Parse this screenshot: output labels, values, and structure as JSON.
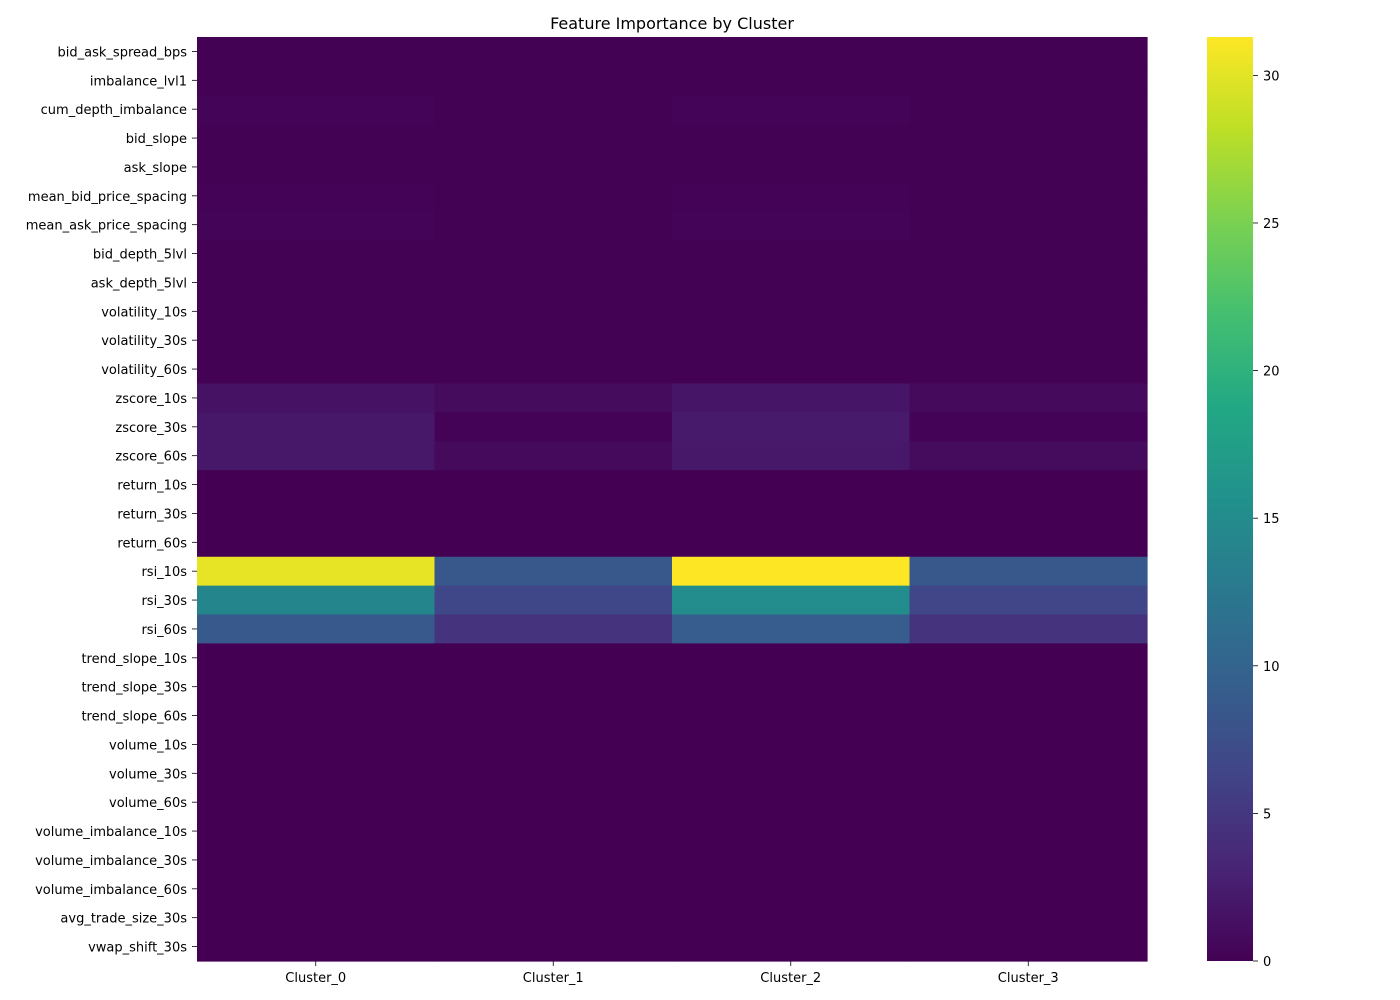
{
  "chart_data": {
    "type": "heatmap",
    "title": "Feature Importance by Cluster",
    "xlabel": "",
    "ylabel": "",
    "colormap": "viridis",
    "grid": false,
    "legend": "colorbar right",
    "color_range": [
      0,
      31.3
    ],
    "colorbar_ticks": [
      0,
      5,
      10,
      15,
      20,
      25,
      30
    ],
    "columns": [
      "Cluster_0",
      "Cluster_1",
      "Cluster_2",
      "Cluster_3"
    ],
    "rows": [
      "bid_ask_spread_bps",
      "imbalance_lvl1",
      "cum_depth_imbalance",
      "bid_slope",
      "ask_slope",
      "mean_bid_price_spacing",
      "mean_ask_price_spacing",
      "bid_depth_5lvl",
      "ask_depth_5lvl",
      "volatility_10s",
      "volatility_30s",
      "volatility_60s",
      "zscore_10s",
      "zscore_30s",
      "zscore_60s",
      "return_10s",
      "return_30s",
      "return_60s",
      "rsi_10s",
      "rsi_30s",
      "rsi_60s",
      "trend_slope_10s",
      "trend_slope_30s",
      "trend_slope_60s",
      "volume_10s",
      "volume_30s",
      "volume_60s",
      "volume_imbalance_10s",
      "volume_imbalance_30s",
      "volume_imbalance_60s",
      "avg_trade_size_30s",
      "vwap_shift_30s"
    ],
    "values": [
      [
        0.1,
        0.05,
        0.1,
        0.05
      ],
      [
        0.1,
        0.05,
        0.1,
        0.05
      ],
      [
        0.3,
        0.1,
        0.3,
        0.1
      ],
      [
        0.1,
        0.05,
        0.1,
        0.05
      ],
      [
        0.1,
        0.05,
        0.1,
        0.05
      ],
      [
        0.2,
        0.1,
        0.2,
        0.1
      ],
      [
        0.3,
        0.1,
        0.3,
        0.1
      ],
      [
        0.1,
        0.05,
        0.1,
        0.05
      ],
      [
        0.1,
        0.05,
        0.1,
        0.05
      ],
      [
        0.05,
        0.05,
        0.05,
        0.05
      ],
      [
        0.05,
        0.05,
        0.05,
        0.05
      ],
      [
        0.05,
        0.05,
        0.05,
        0.05
      ],
      [
        1.5,
        0.9,
        1.8,
        0.8
      ],
      [
        2.0,
        0.2,
        2.2,
        0.2
      ],
      [
        2.0,
        0.8,
        2.1,
        0.9
      ],
      [
        0.0,
        0.0,
        0.0,
        0.0
      ],
      [
        0.0,
        0.0,
        0.0,
        0.0
      ],
      [
        0.0,
        0.0,
        0.0,
        0.0
      ],
      [
        30.2,
        8.5,
        31.3,
        8.5
      ],
      [
        14.2,
        6.6,
        15.0,
        6.5
      ],
      [
        8.7,
        4.6,
        9.2,
        4.6
      ],
      [
        0.02,
        0.02,
        0.02,
        0.02
      ],
      [
        0.02,
        0.02,
        0.02,
        0.02
      ],
      [
        0.02,
        0.02,
        0.02,
        0.02
      ],
      [
        0.02,
        0.02,
        0.02,
        0.02
      ],
      [
        0.02,
        0.02,
        0.02,
        0.02
      ],
      [
        0.02,
        0.02,
        0.02,
        0.02
      ],
      [
        0.02,
        0.02,
        0.02,
        0.02
      ],
      [
        0.02,
        0.02,
        0.02,
        0.02
      ],
      [
        0.02,
        0.02,
        0.02,
        0.02
      ],
      [
        0.02,
        0.02,
        0.02,
        0.02
      ],
      [
        0.02,
        0.02,
        0.02,
        0.02
      ]
    ]
  }
}
